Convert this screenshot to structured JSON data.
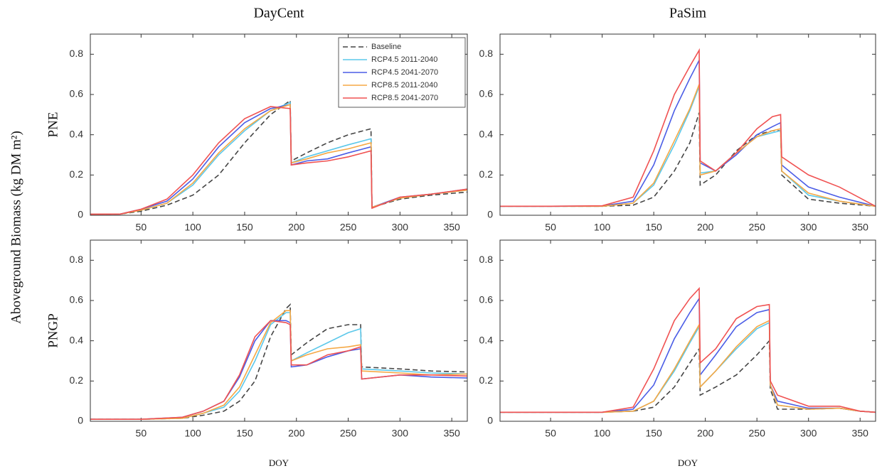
{
  "ylabel": "Aboveground Biomass (kg DM m²)",
  "chart_data": [
    {
      "type": "line",
      "title": "DayCent",
      "ylabel": "PNE",
      "legend": true,
      "legend_position": "upper right",
      "xlim": [
        1,
        365
      ],
      "ylim": [
        0,
        0.9
      ],
      "xticks": [
        50,
        100,
        150,
        200,
        250,
        300,
        350
      ],
      "yticks": [
        0,
        0.2,
        0.4,
        0.6,
        0.8
      ],
      "x": [
        1,
        30,
        50,
        75,
        100,
        125,
        150,
        175,
        194,
        195,
        210,
        230,
        250,
        272,
        273,
        300,
        330,
        365
      ],
      "series": [
        {
          "name": "Baseline",
          "color": "#444444",
          "dash": "dashed",
          "values": [
            0.005,
            0.006,
            0.02,
            0.05,
            0.1,
            0.2,
            0.36,
            0.5,
            0.57,
            0.27,
            0.31,
            0.36,
            0.4,
            0.43,
            0.04,
            0.08,
            0.1,
            0.115
          ]
        },
        {
          "name": "RCP4.5 2011-2040",
          "color": "#5cc8ea",
          "values": [
            0.005,
            0.006,
            0.025,
            0.06,
            0.15,
            0.3,
            0.42,
            0.52,
            0.56,
            0.26,
            0.29,
            0.32,
            0.35,
            0.38,
            0.04,
            0.085,
            0.105,
            0.125
          ]
        },
        {
          "name": "RCP4.5 2041-2070",
          "color": "#4b5de6",
          "values": [
            0.005,
            0.006,
            0.03,
            0.07,
            0.18,
            0.34,
            0.46,
            0.53,
            0.55,
            0.25,
            0.27,
            0.28,
            0.31,
            0.34,
            0.04,
            0.09,
            0.105,
            0.13
          ]
        },
        {
          "name": "RCP8.5 2011-2040",
          "color": "#f5a845",
          "values": [
            0.005,
            0.006,
            0.025,
            0.06,
            0.16,
            0.31,
            0.43,
            0.52,
            0.55,
            0.26,
            0.28,
            0.31,
            0.33,
            0.36,
            0.04,
            0.085,
            0.105,
            0.125
          ]
        },
        {
          "name": "RCP8.5 2041-2070",
          "color": "#f05252",
          "values": [
            0.005,
            0.006,
            0.03,
            0.08,
            0.2,
            0.36,
            0.48,
            0.54,
            0.53,
            0.25,
            0.26,
            0.27,
            0.29,
            0.32,
            0.035,
            0.09,
            0.105,
            0.13
          ]
        }
      ]
    },
    {
      "type": "line",
      "title": "PaSim",
      "xlim": [
        1,
        365
      ],
      "ylim": [
        0,
        0.9
      ],
      "xticks": [
        50,
        100,
        150,
        200,
        250,
        300,
        350
      ],
      "yticks": [
        0,
        0.2,
        0.4,
        0.6,
        0.8
      ],
      "x": [
        1,
        50,
        100,
        130,
        150,
        170,
        185,
        194,
        195,
        210,
        230,
        250,
        265,
        273,
        274,
        300,
        330,
        365
      ],
      "series": [
        {
          "color": "#444444",
          "dash": "dashed",
          "values": [
            0.045,
            0.045,
            0.045,
            0.05,
            0.09,
            0.22,
            0.36,
            0.51,
            0.15,
            0.2,
            0.32,
            0.4,
            0.42,
            0.42,
            0.2,
            0.08,
            0.06,
            0.045
          ]
        },
        {
          "color": "#5cc8ea",
          "values": [
            0.045,
            0.045,
            0.045,
            0.06,
            0.15,
            0.35,
            0.52,
            0.64,
            0.21,
            0.22,
            0.31,
            0.39,
            0.41,
            0.42,
            0.22,
            0.1,
            0.07,
            0.045
          ]
        },
        {
          "color": "#4b5de6",
          "values": [
            0.045,
            0.045,
            0.046,
            0.07,
            0.25,
            0.52,
            0.68,
            0.77,
            0.26,
            0.22,
            0.3,
            0.4,
            0.44,
            0.46,
            0.25,
            0.14,
            0.09,
            0.045
          ]
        },
        {
          "color": "#f5a845",
          "values": [
            0.045,
            0.045,
            0.045,
            0.06,
            0.16,
            0.37,
            0.53,
            0.65,
            0.2,
            0.22,
            0.31,
            0.39,
            0.42,
            0.43,
            0.22,
            0.11,
            0.07,
            0.045
          ]
        },
        {
          "color": "#f05252",
          "values": [
            0.045,
            0.045,
            0.047,
            0.09,
            0.32,
            0.6,
            0.74,
            0.82,
            0.27,
            0.22,
            0.31,
            0.43,
            0.49,
            0.5,
            0.29,
            0.2,
            0.14,
            0.045
          ]
        }
      ]
    },
    {
      "type": "line",
      "ylabel": "PNGP",
      "xlabel": "DOY",
      "xlim": [
        1,
        365
      ],
      "ylim": [
        0,
        0.9
      ],
      "xticks": [
        50,
        100,
        150,
        200,
        250,
        300,
        350
      ],
      "yticks": [
        0,
        0.2,
        0.4,
        0.6,
        0.8
      ],
      "x": [
        1,
        50,
        90,
        110,
        130,
        145,
        160,
        175,
        190,
        194,
        195,
        210,
        230,
        250,
        262,
        263,
        300,
        330,
        365
      ],
      "series": [
        {
          "color": "#444444",
          "dash": "dashed",
          "values": [
            0.01,
            0.01,
            0.015,
            0.03,
            0.05,
            0.1,
            0.2,
            0.42,
            0.56,
            0.58,
            0.33,
            0.39,
            0.46,
            0.48,
            0.48,
            0.27,
            0.26,
            0.25,
            0.245
          ]
        },
        {
          "color": "#5cc8ea",
          "values": [
            0.01,
            0.01,
            0.015,
            0.04,
            0.07,
            0.15,
            0.3,
            0.48,
            0.54,
            0.54,
            0.3,
            0.34,
            0.39,
            0.44,
            0.46,
            0.26,
            0.25,
            0.24,
            0.235
          ]
        },
        {
          "color": "#4b5de6",
          "values": [
            0.01,
            0.01,
            0.02,
            0.05,
            0.1,
            0.22,
            0.4,
            0.5,
            0.5,
            0.49,
            0.27,
            0.28,
            0.32,
            0.35,
            0.36,
            0.21,
            0.23,
            0.22,
            0.215
          ]
        },
        {
          "color": "#f5a845",
          "values": [
            0.01,
            0.01,
            0.015,
            0.04,
            0.08,
            0.17,
            0.33,
            0.49,
            0.55,
            0.55,
            0.3,
            0.33,
            0.36,
            0.37,
            0.38,
            0.25,
            0.24,
            0.23,
            0.235
          ]
        },
        {
          "color": "#f05252",
          "values": [
            0.01,
            0.01,
            0.02,
            0.05,
            0.1,
            0.23,
            0.42,
            0.5,
            0.49,
            0.48,
            0.28,
            0.28,
            0.33,
            0.35,
            0.37,
            0.21,
            0.23,
            0.23,
            0.225
          ]
        }
      ]
    },
    {
      "type": "line",
      "xlabel": "DOY",
      "xlim": [
        1,
        365
      ],
      "ylim": [
        0,
        0.9
      ],
      "xticks": [
        50,
        100,
        150,
        200,
        250,
        300,
        350
      ],
      "yticks": [
        0,
        0.2,
        0.4,
        0.6,
        0.8
      ],
      "x": [
        1,
        50,
        100,
        130,
        150,
        170,
        185,
        194,
        195,
        210,
        230,
        250,
        262,
        263,
        270,
        300,
        330,
        350,
        365
      ],
      "series": [
        {
          "color": "#444444",
          "dash": "dashed",
          "values": [
            0.045,
            0.045,
            0.045,
            0.05,
            0.07,
            0.17,
            0.29,
            0.36,
            0.13,
            0.17,
            0.23,
            0.33,
            0.4,
            0.16,
            0.06,
            0.06,
            0.065,
            0.05,
            0.045
          ]
        },
        {
          "color": "#5cc8ea",
          "values": [
            0.045,
            0.045,
            0.045,
            0.05,
            0.1,
            0.25,
            0.39,
            0.47,
            0.17,
            0.25,
            0.36,
            0.46,
            0.49,
            0.18,
            0.08,
            0.06,
            0.065,
            0.05,
            0.045
          ]
        },
        {
          "color": "#4b5de6",
          "values": [
            0.045,
            0.045,
            0.045,
            0.06,
            0.18,
            0.41,
            0.54,
            0.61,
            0.23,
            0.33,
            0.47,
            0.54,
            0.555,
            0.18,
            0.1,
            0.065,
            0.065,
            0.05,
            0.045
          ]
        },
        {
          "color": "#f5a845",
          "values": [
            0.045,
            0.045,
            0.045,
            0.05,
            0.1,
            0.26,
            0.4,
            0.48,
            0.17,
            0.25,
            0.37,
            0.47,
            0.5,
            0.18,
            0.08,
            0.06,
            0.065,
            0.05,
            0.045
          ]
        },
        {
          "color": "#f05252",
          "values": [
            0.045,
            0.045,
            0.045,
            0.07,
            0.26,
            0.5,
            0.61,
            0.66,
            0.29,
            0.36,
            0.51,
            0.57,
            0.58,
            0.2,
            0.13,
            0.075,
            0.075,
            0.05,
            0.045
          ]
        }
      ]
    }
  ]
}
